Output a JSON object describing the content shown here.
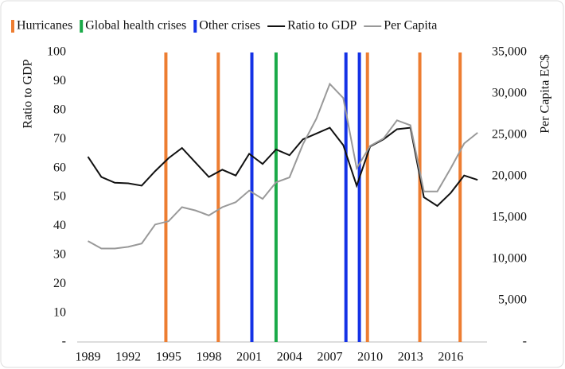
{
  "chart_data": {
    "type": "line",
    "y_label": "Ratio to GDP",
    "y2_label": "Per Capita EC$",
    "x": [
      1989,
      1990,
      1991,
      1992,
      1993,
      1994,
      1995,
      1996,
      1997,
      1998,
      1999,
      2000,
      2001,
      2002,
      2003,
      2004,
      2005,
      2006,
      2007,
      2008,
      2009,
      2010,
      2011,
      2012,
      2013,
      2014,
      2015,
      2016,
      2017,
      2018
    ],
    "xlim": [
      1988.2,
      2018.7
    ],
    "xticks": [
      1989,
      1992,
      1995,
      1998,
      2001,
      2004,
      2007,
      2010,
      2013,
      2016
    ],
    "ylim": [
      0,
      100
    ],
    "yticks": [
      {
        "value": 0,
        "label": "-"
      },
      10,
      20,
      30,
      40,
      50,
      60,
      70,
      80,
      90,
      100
    ],
    "y2lim": [
      0,
      35000
    ],
    "y2ticks": [
      {
        "value": 0,
        "label": "-"
      },
      {
        "value": 5000,
        "label": "5,000"
      },
      {
        "value": 10000,
        "label": "10,000"
      },
      {
        "value": 15000,
        "label": "15,000"
      },
      {
        "value": 20000,
        "label": "20,000"
      },
      {
        "value": 25000,
        "label": "25,000"
      },
      {
        "value": 30000,
        "label": "30,000"
      },
      {
        "value": 35000,
        "label": "35,000"
      }
    ],
    "events": [
      {
        "name": "Hurricanes",
        "color": "#ed7d31",
        "x": [
          1994.8,
          1998.7,
          2009.8,
          2013.7,
          2016.7
        ]
      },
      {
        "name": "Global health crises",
        "color": "#1aaa48",
        "x": [
          2003.0
        ]
      },
      {
        "name": "Other crises",
        "color": "#1432e6",
        "x": [
          2001.2,
          2008.2,
          2009.2
        ]
      }
    ],
    "series": [
      {
        "name": "Ratio to GDP",
        "color": "#111111",
        "values": [
          64,
          57,
          55,
          54.8,
          54,
          59,
          63.5,
          67,
          62,
          57,
          59.5,
          57.5,
          65,
          61.5,
          66.5,
          64.5,
          70,
          72,
          74,
          68,
          54,
          67.5,
          70,
          73.5,
          74,
          50,
          47,
          51.5,
          57.5,
          56
        ]
      },
      {
        "name": "Per Capita",
        "color": "#999999",
        "axis": "y2",
        "values": [
          12200,
          11300,
          11300,
          11500,
          11900,
          14200,
          14600,
          16300,
          15900,
          15300,
          16300,
          16900,
          18300,
          17300,
          19300,
          19900,
          23900,
          27000,
          31200,
          29500,
          21000,
          23700,
          24600,
          26800,
          26200,
          18200,
          18200,
          21000,
          24000,
          25300
        ]
      }
    ]
  }
}
